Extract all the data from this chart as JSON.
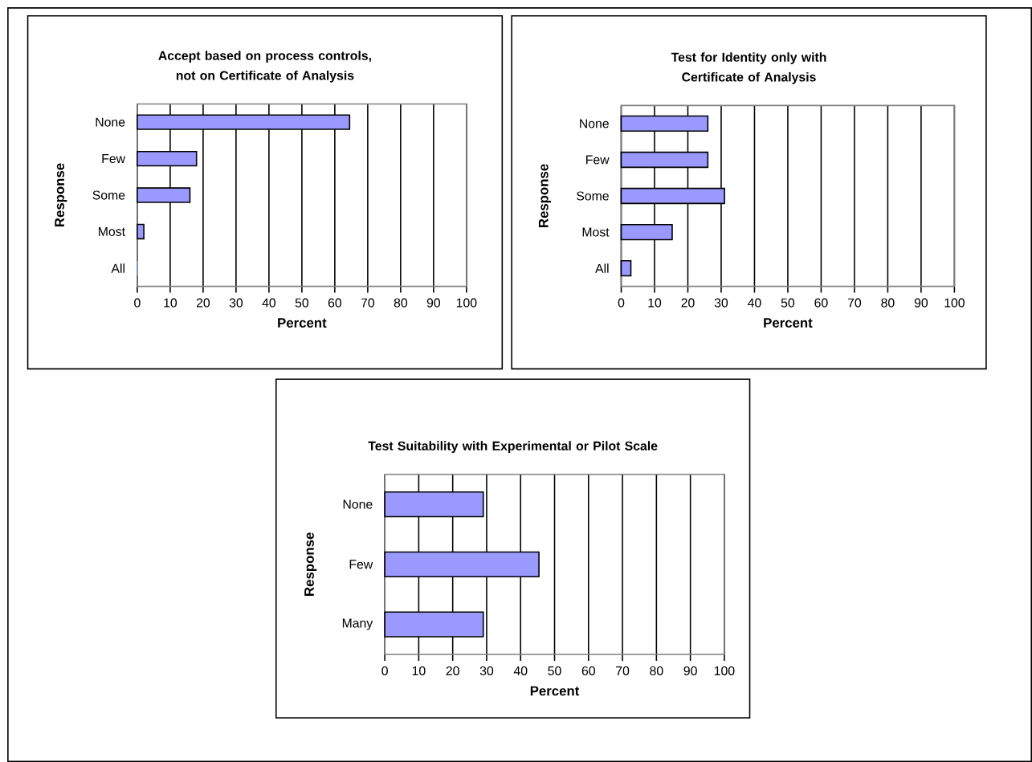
{
  "chart_data": [
    {
      "type": "bar",
      "orientation": "horizontal",
      "title": "Accept based on process controls, not on Certificate of Analysis",
      "xlabel": "Percent",
      "ylabel": "Response",
      "categories": [
        "None",
        "Few",
        "Some",
        "Most",
        "All"
      ],
      "values": [
        64.5,
        18,
        16,
        2,
        0
      ],
      "color": "#9999ff",
      "xlim": [
        0,
        100
      ],
      "xticks": [
        0,
        10,
        20,
        30,
        40,
        50,
        60,
        70,
        80,
        90,
        100
      ],
      "grid": "x"
    },
    {
      "type": "bar",
      "orientation": "horizontal",
      "title": "Test for Identity only with Certificate of Analysis",
      "xlabel": "Percent",
      "ylabel": "Response",
      "categories": [
        "None",
        "Few",
        "Some",
        "Most",
        "All"
      ],
      "values": [
        26,
        26,
        31,
        15.3,
        2.9
      ],
      "color": "#9999ff",
      "xlim": [
        0,
        100
      ],
      "xticks": [
        0,
        10,
        20,
        30,
        40,
        50,
        60,
        70,
        80,
        90,
        100
      ],
      "grid": "x"
    },
    {
      "type": "bar",
      "orientation": "horizontal",
      "title": "Test Suitability with Experimental or Pilot Scale",
      "xlabel": "Percent",
      "ylabel": "Response",
      "categories": [
        "None",
        "Few",
        "Many"
      ],
      "values": [
        29,
        45.4,
        29
      ],
      "color": "#9999ff",
      "xlim": [
        0,
        100
      ],
      "xticks": [
        0,
        10,
        20,
        30,
        40,
        50,
        60,
        70,
        80,
        90,
        100
      ],
      "grid": "x"
    }
  ]
}
